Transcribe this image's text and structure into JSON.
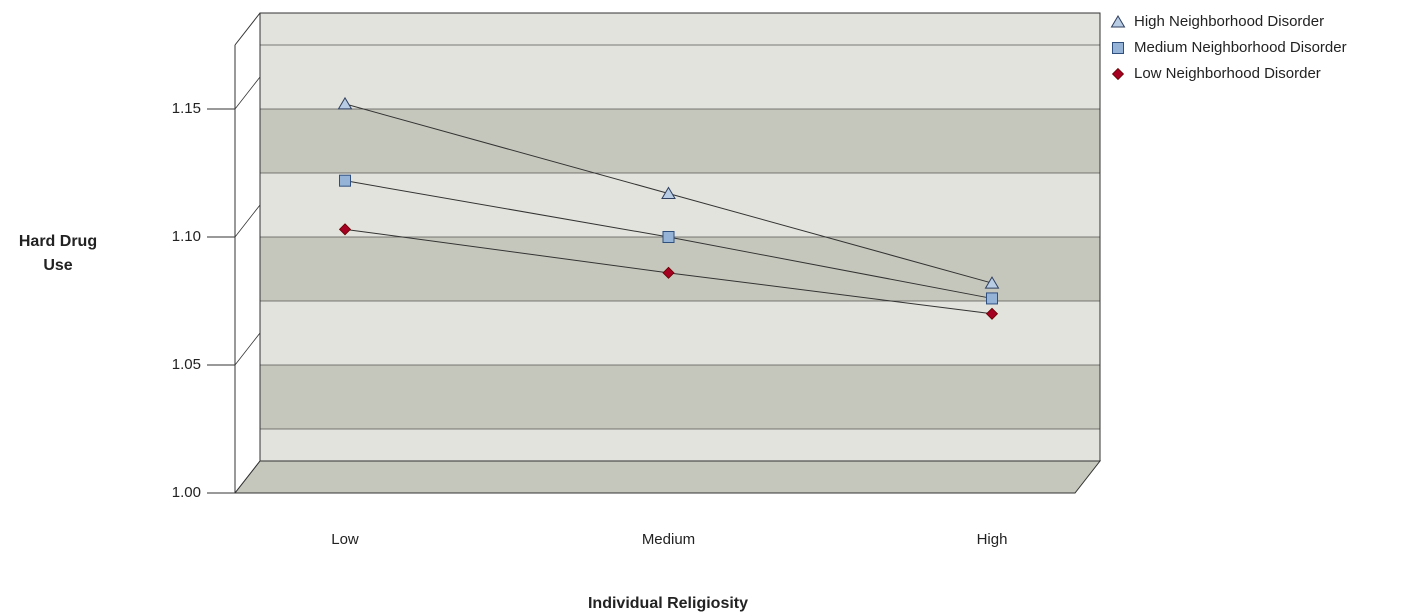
{
  "chart_data": {
    "type": "line",
    "x_label": "Individual Religiosity",
    "y_label": "Hard Drug Use",
    "categories": [
      "Low",
      "Medium",
      "High"
    ],
    "ylim": [
      1.0,
      1.175
    ],
    "yticks": [
      {
        "value": 1.0,
        "label": "1.00"
      },
      {
        "value": 1.05,
        "label": "1.05"
      },
      {
        "value": 1.1,
        "label": "1.10"
      },
      {
        "value": 1.15,
        "label": "1.15"
      }
    ],
    "grid": true,
    "legend": "top-right",
    "series": [
      {
        "name": "High Neighborhood Disorder",
        "color": "#b8cce4",
        "marker": "triangle",
        "values": [
          1.152,
          1.117,
          1.082
        ]
      },
      {
        "name": "Medium Neighborhood Disorder",
        "color": "#95b3d7",
        "marker": "square",
        "values": [
          1.122,
          1.1,
          1.076
        ]
      },
      {
        "name": "Low Neighborhood Disorder",
        "color": "#a50021",
        "marker": "diamond",
        "values": [
          1.103,
          1.086,
          1.07
        ]
      }
    ]
  }
}
